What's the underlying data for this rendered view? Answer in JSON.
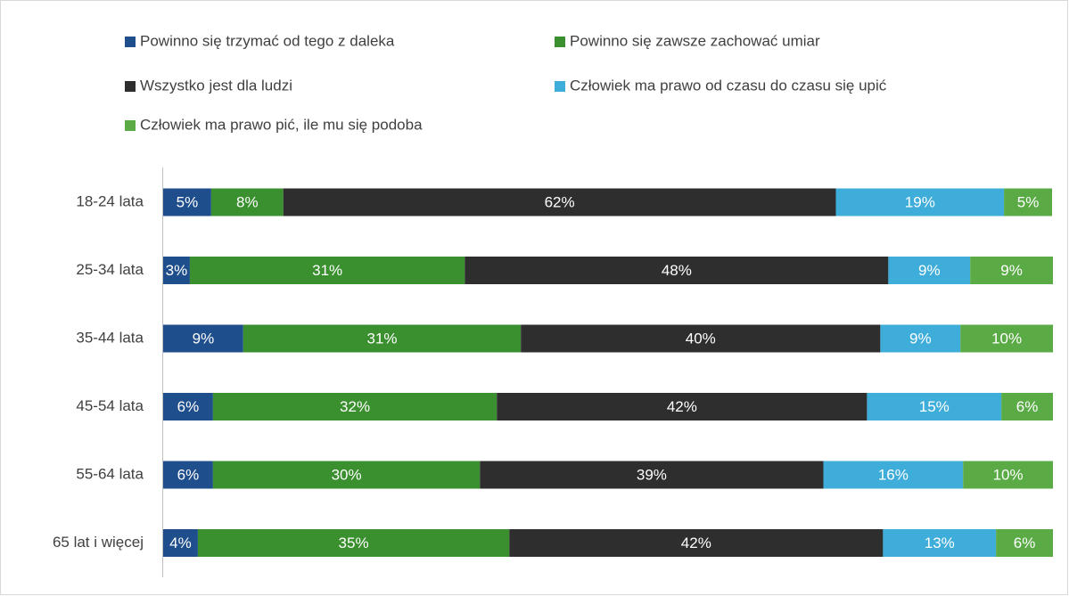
{
  "chart_data": {
    "type": "stacked-barh",
    "categories": [
      "18-24 lata",
      "25-34 lata",
      "35-44 lata",
      "45-54 lata",
      "55-64 lata",
      "65 lat i więcej"
    ],
    "xlim": [
      0,
      100
    ],
    "legend": "top",
    "series": [
      {
        "name": "Powinno się trzymać od tego z daleka",
        "color": "#1f4e8c",
        "values": [
          5.4,
          3.0,
          9.0,
          5.6,
          5.6,
          3.9
        ],
        "value_labels": [
          "5%",
          "3%",
          "9%",
          "6%",
          "6%",
          "4%"
        ]
      },
      {
        "name": "Powinno się zawsze zachować umiar",
        "color": "#3a8f2e",
        "values": [
          8.1,
          30.9,
          31.2,
          31.9,
          30.0,
          35.0
        ],
        "value_labels": [
          "8%",
          "31%",
          "31%",
          "32%",
          "30%",
          "35%"
        ]
      },
      {
        "name": "Wszystko jest dla ludzi",
        "color": "#2e2e2e",
        "values": [
          62.1,
          47.6,
          40.4,
          41.6,
          38.6,
          42.0
        ],
        "value_labels": [
          "62%",
          "48%",
          "40%",
          "42%",
          "39%",
          "42%"
        ]
      },
      {
        "name": "Człowiek ma prawo od czasu do czasu się upić",
        "color": "#3fadd9",
        "values": [
          18.9,
          9.2,
          9.0,
          15.1,
          15.7,
          12.7
        ],
        "value_labels": [
          "19%",
          "9%",
          "9%",
          "15%",
          "16%",
          "13%"
        ]
      },
      {
        "name": "Człowiek ma prawo pić, ile mu się podoba",
        "color": "#5aab45",
        "values": [
          5.4,
          9.3,
          10.4,
          5.8,
          10.1,
          6.4
        ],
        "value_labels": [
          "5%",
          "9%",
          "10%",
          "6%",
          "10%",
          "6%"
        ]
      }
    ]
  }
}
